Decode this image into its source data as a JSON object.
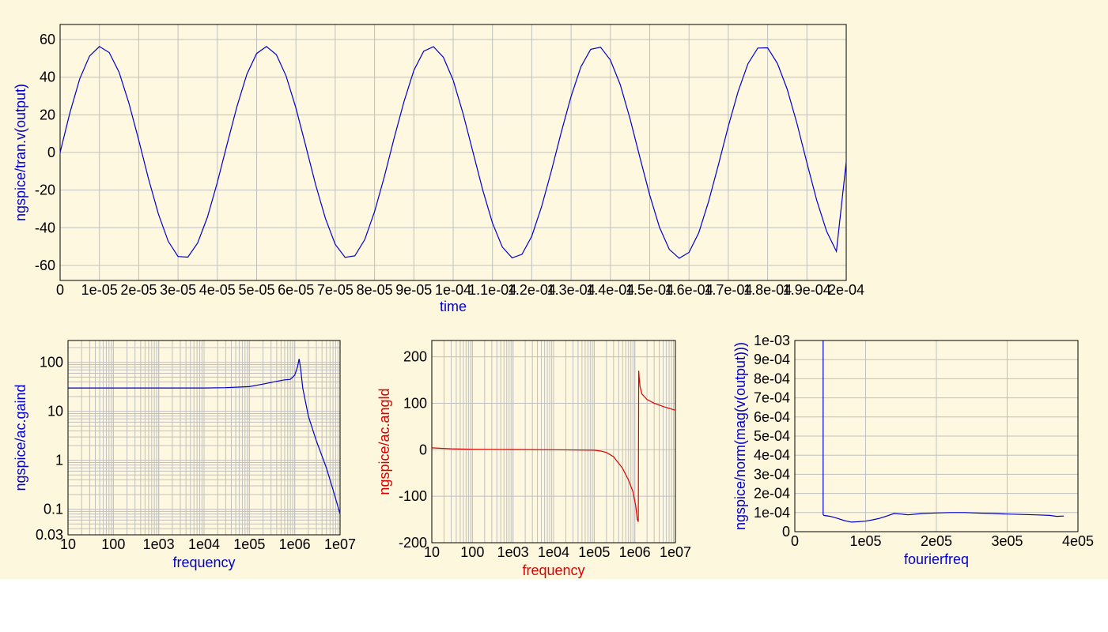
{
  "colors": {
    "background": "#fdf7dd",
    "plot_area": "#fef8e0",
    "grid": "#c0c0c0",
    "blue": "#0000c8",
    "red": "#dd0000"
  },
  "chart_data": [
    {
      "id": "tran",
      "type": "line",
      "xlabel": "time",
      "ylabel": "ngspice/tran.v(output)",
      "label_color": "#0000c8",
      "xlim": [
        0,
        0.0002
      ],
      "ylim": [
        -68,
        68
      ],
      "x_ticks": [
        {
          "v": 0,
          "t": "0"
        },
        {
          "v": 1e-05,
          "t": "1e-05"
        },
        {
          "v": 2e-05,
          "t": "2e-05"
        },
        {
          "v": 3e-05,
          "t": "3e-05"
        },
        {
          "v": 4e-05,
          "t": "4e-05"
        },
        {
          "v": 5e-05,
          "t": "5e-05"
        },
        {
          "v": 6e-05,
          "t": "6e-05"
        },
        {
          "v": 7e-05,
          "t": "7e-05"
        },
        {
          "v": 8e-05,
          "t": "8e-05"
        },
        {
          "v": 9e-05,
          "t": "9e-05"
        },
        {
          "v": 0.0001,
          "t": "1e-04"
        },
        {
          "v": 0.00011,
          "t": "1.1e-04"
        },
        {
          "v": 0.00012,
          "t": "1.2e-04"
        },
        {
          "v": 0.00013,
          "t": "1.3e-04"
        },
        {
          "v": 0.00014,
          "t": "1.4e-04"
        },
        {
          "v": 0.00015,
          "t": "1.5e-04"
        },
        {
          "v": 0.00016,
          "t": "1.6e-04"
        },
        {
          "v": 0.00017,
          "t": "1.7e-04"
        },
        {
          "v": 0.00018,
          "t": "1.8e-04"
        },
        {
          "v": 0.00019,
          "t": "1.9e-04"
        },
        {
          "v": 0.0002,
          "t": "2e-04"
        }
      ],
      "y_ticks": [
        {
          "v": 60,
          "t": "60"
        },
        {
          "v": 40,
          "t": "40"
        },
        {
          "v": 20,
          "t": "20"
        },
        {
          "v": 0,
          "t": "0"
        },
        {
          "v": -20,
          "t": "-20"
        },
        {
          "v": -40,
          "t": "-40"
        },
        {
          "v": -60,
          "t": "-60"
        }
      ],
      "series": [
        {
          "color": "#0000c8",
          "x": [
            0,
            2.5e-06,
            5e-06,
            7.5e-06,
            1e-05,
            1.25e-05,
            1.5e-05,
            1.75e-05,
            2e-05,
            2.25e-05,
            2.5e-05,
            2.75e-05,
            3e-05,
            3.25e-05,
            3.5e-05,
            3.75e-05,
            4e-05,
            4.25e-05,
            4.5e-05,
            4.75e-05,
            5e-05,
            5.25e-05,
            5.5e-05,
            5.75e-05,
            6e-05,
            6.25e-05,
            6.5e-05,
            6.75e-05,
            7e-05,
            7.25e-05,
            7.5e-05,
            7.75e-05,
            8e-05,
            8.25e-05,
            8.5e-05,
            8.75e-05,
            9e-05,
            9.25e-05,
            9.5e-05,
            9.75e-05,
            0.0001,
            0.0001025,
            0.000105,
            0.0001075,
            0.00011,
            0.0001125,
            0.000115,
            0.0001175,
            0.00012,
            0.0001225,
            0.000125,
            0.0001275,
            0.00013,
            0.0001325,
            0.000135,
            0.0001375,
            0.00014,
            0.0001425,
            0.000145,
            0.0001475,
            0.00015,
            0.0001525,
            0.000155,
            0.0001575,
            0.00016,
            0.0001625,
            0.000165,
            0.0001675,
            0.00017,
            0.0001725,
            0.000175,
            0.0001775,
            0.00018,
            0.0001825,
            0.000185,
            0.0001875,
            0.00019,
            0.0001925,
            0.000195,
            0.0001975,
            0.0002
          ],
          "y": [
            0,
            21.1,
            39.1,
            51.3,
            56.3,
            53.1,
            42.6,
            26.2,
            6.6,
            -14,
            -32.7,
            -47.2,
            -55.3,
            -55.6,
            -48.1,
            -34.2,
            -15.9,
            4.5,
            24.4,
            41.5,
            52.6,
            56.3,
            52,
            40.6,
            23.6,
            3.5,
            -17,
            -35.1,
            -48.8,
            -55.7,
            -54.9,
            -46.3,
            -31.5,
            -12.8,
            7.7,
            27.1,
            43.6,
            53.8,
            56.2,
            50.6,
            38.4,
            20.8,
            0.4,
            -19.8,
            -37.5,
            -50.2,
            -56,
            -54.1,
            -44.5,
            -28.8,
            -9.6,
            10.8,
            29.8,
            45.5,
            54.8,
            55.9,
            49.1,
            36.1,
            18,
            -2.6,
            -22.6,
            -39.8,
            -51.5,
            -56.2,
            -53.1,
            -42.6,
            -26,
            -6.4,
            13.9,
            32.4,
            47.2,
            55.5,
            55.6,
            47.3,
            33.6,
            15.1,
            -5.5,
            -25.4,
            -41.9,
            -52.6,
            -5
          ]
        }
      ]
    },
    {
      "id": "gain",
      "type": "line",
      "xlabel": "frequency",
      "ylabel": "ngspice/ac.gaind",
      "label_color": "#0000c8",
      "xscale": "log",
      "yscale": "log",
      "grid": "minor",
      "xlim": [
        10,
        10000000
      ],
      "ylim": [
        0.03,
        280
      ],
      "x_ticks": [
        {
          "v": 10,
          "t": "10"
        },
        {
          "v": 100,
          "t": "100"
        },
        {
          "v": 1000,
          "t": "1e03"
        },
        {
          "v": 10000,
          "t": "1e04"
        },
        {
          "v": 100000,
          "t": "1e05"
        },
        {
          "v": 1000000,
          "t": "1e06"
        },
        {
          "v": 10000000,
          "t": "1e07"
        }
      ],
      "y_ticks": [
        {
          "v": 100,
          "t": "100"
        },
        {
          "v": 10,
          "t": "10"
        },
        {
          "v": 1,
          "t": "1"
        },
        {
          "v": 0.1,
          "t": "0.1"
        },
        {
          "v": 0.03,
          "t": "0.03"
        }
      ],
      "series": [
        {
          "color": "#0000c8",
          "x": [
            10,
            100,
            1000,
            10000,
            30000,
            100000,
            200000,
            400000,
            600000,
            800000,
            1000000,
            1150000,
            1250000,
            1350000,
            1500000,
            2000000,
            3000000,
            5000000,
            7000000,
            10000000
          ],
          "y": [
            30,
            30,
            30,
            30,
            30.5,
            32,
            36,
            41,
            44,
            45,
            55,
            80,
            118,
            75,
            30,
            8,
            2.5,
            0.7,
            0.25,
            0.08
          ]
        }
      ]
    },
    {
      "id": "phase",
      "type": "line",
      "xlabel": "frequency",
      "ylabel": "ngspice/ac.angld",
      "label_color": "#dd0000",
      "xscale": "log",
      "grid": "minor-x",
      "xlim": [
        10,
        10000000
      ],
      "ylim": [
        -200,
        235
      ],
      "x_ticks": [
        {
          "v": 10,
          "t": "10"
        },
        {
          "v": 100,
          "t": "100"
        },
        {
          "v": 1000,
          "t": "1e03"
        },
        {
          "v": 10000,
          "t": "1e04"
        },
        {
          "v": 100000,
          "t": "1e05"
        },
        {
          "v": 1000000,
          "t": "1e06"
        },
        {
          "v": 10000000,
          "t": "1e07"
        }
      ],
      "y_ticks": [
        {
          "v": 200,
          "t": "200"
        },
        {
          "v": 100,
          "t": "100"
        },
        {
          "v": 0,
          "t": "0"
        },
        {
          "v": -100,
          "t": "-100"
        },
        {
          "v": -200,
          "t": "-200"
        }
      ],
      "series": [
        {
          "color": "#dd0000",
          "x": [
            10,
            30,
            100,
            1000,
            10000,
            100000,
            150000,
            200000,
            300000,
            500000,
            700000,
            900000,
            1050000,
            1150000,
            1220000,
            1250000,
            1280000,
            1350000,
            1500000,
            2000000,
            3000000,
            5000000,
            10000000
          ],
          "y": [
            4,
            2,
            1,
            0.5,
            0,
            -1,
            -3,
            -6,
            -15,
            -40,
            -65,
            -90,
            -120,
            -150,
            -155,
            170,
            155,
            135,
            120,
            108,
            100,
            93,
            85
          ]
        }
      ]
    },
    {
      "id": "fourier",
      "type": "line",
      "xlabel": "fourierfreq",
      "ylabel": "ngspice/norm(mag(v(output)))",
      "label_color": "#0000c8",
      "xlim": [
        0,
        400000
      ],
      "ylim": [
        0,
        0.001
      ],
      "x_ticks": [
        {
          "v": 0,
          "t": "0"
        },
        {
          "v": 100000,
          "t": "1e05"
        },
        {
          "v": 200000,
          "t": "2e05"
        },
        {
          "v": 300000,
          "t": "3e05"
        },
        {
          "v": 400000,
          "t": "4e05"
        }
      ],
      "y_ticks": [
        {
          "v": 0.001,
          "t": "1e-03"
        },
        {
          "v": 0.0009,
          "t": "9e-04"
        },
        {
          "v": 0.0008,
          "t": "8e-04"
        },
        {
          "v": 0.0007,
          "t": "7e-04"
        },
        {
          "v": 0.0006,
          "t": "6e-04"
        },
        {
          "v": 0.0005,
          "t": "5e-04"
        },
        {
          "v": 0.0004,
          "t": "4e-04"
        },
        {
          "v": 0.0003,
          "t": "3e-04"
        },
        {
          "v": 0.0002,
          "t": "2e-04"
        },
        {
          "v": 0.0001,
          "t": "1e-04"
        },
        {
          "v": 0,
          "t": "0"
        }
      ],
      "series": [
        {
          "color": "#0000c8",
          "x": [
            40000,
            40000,
            41000,
            50000,
            60000,
            70000,
            80000,
            90000,
            100000,
            110000,
            120000,
            130000,
            140000,
            150000,
            160000,
            180000,
            200000,
            220000,
            240000,
            260000,
            280000,
            300000,
            320000,
            340000,
            360000,
            370000,
            380000
          ],
          "y": [
            0.001,
            9e-05,
            8.5e-05,
            8e-05,
            7e-05,
            5.8e-05,
            5e-05,
            5.2e-05,
            5.5e-05,
            6.2e-05,
            7e-05,
            8.2e-05,
            9.5e-05,
            9.2e-05,
            8.8e-05,
            9.5e-05,
            9.8e-05,
            0.0001,
            0.0001,
            9.7e-05,
            9.5e-05,
            9.2e-05,
            9e-05,
            8.8e-05,
            8.5e-05,
            8e-05,
            8.2e-05
          ]
        }
      ]
    }
  ]
}
